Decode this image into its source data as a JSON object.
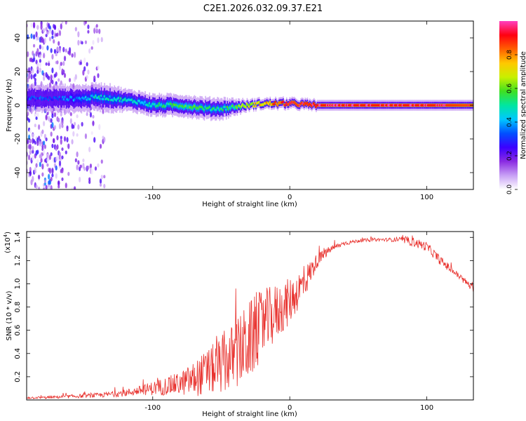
{
  "figure": {
    "title": "C2E1.2026.032.09.37.E21"
  },
  "chart_data": [
    {
      "type": "heatmap",
      "xlabel": "Height of straight line (km)",
      "ylabel": "Frequency (Hz)",
      "xlim": [
        -192,
        134
      ],
      "ylim": [
        -50,
        50
      ],
      "xticks": [
        -100,
        0,
        100
      ],
      "xtick_labels": [
        "-100",
        "0",
        "100"
      ],
      "yticks": [
        -40,
        -20,
        0,
        20,
        40
      ],
      "ytick_labels": [
        "-40",
        "-20",
        "0",
        "20",
        "40"
      ],
      "colorbar": {
        "label": "Normalized spectral amplitude",
        "range": [
          0.0,
          1.0
        ],
        "ticks": [
          0.0,
          0.2,
          0.4,
          0.6,
          0.8
        ],
        "tick_labels": [
          "0.0",
          "0.2",
          "0.4",
          "0.6",
          "0.8"
        ],
        "colormap": [
          "#ffffff",
          "#c8a0f5",
          "#8a2be2",
          "#3b00ff",
          "#0050ff",
          "#00c8ff",
          "#00e6a0",
          "#40e020",
          "#c8f000",
          "#ffc800",
          "#ff6000",
          "#ff0010",
          "#ff40c0"
        ]
      },
      "ridge": {
        "x": [
          -190,
          -180,
          -170,
          -160,
          -150,
          -140,
          -130,
          -120,
          -110,
          -100,
          -90,
          -80,
          -70,
          -60,
          -50,
          -40,
          -30,
          -20,
          -10,
          0,
          20,
          60,
          100,
          134
        ],
        "freq": [
          4,
          4,
          4,
          4,
          4,
          5,
          4,
          3,
          2,
          0,
          0,
          0,
          -1,
          -2,
          -2,
          -1,
          0,
          1,
          1,
          1,
          0,
          0,
          0,
          0
        ],
        "amplitude": [
          0.3,
          0.3,
          0.3,
          0.35,
          0.4,
          0.45,
          0.45,
          0.45,
          0.45,
          0.5,
          0.5,
          0.55,
          0.55,
          0.5,
          0.5,
          0.55,
          0.65,
          0.75,
          0.85,
          0.9,
          0.95,
          0.95,
          0.95,
          0.9
        ],
        "halfwidth_hz": [
          5,
          5,
          5,
          5,
          5,
          5,
          5,
          4,
          4,
          4,
          4,
          4,
          4,
          4,
          4,
          3,
          2,
          2,
          2,
          2,
          2,
          2,
          2,
          2
        ]
      }
    },
    {
      "type": "line",
      "xlabel": "Height of straight line (km)",
      "ylabel": "SNR (10 * v/v)",
      "scale_label": "(x10",
      "scale_exponent": "4",
      "scale_close": ")",
      "xlim": [
        -192,
        134
      ],
      "ylim": [
        0,
        1.45
      ],
      "xticks": [
        -100,
        0,
        100
      ],
      "xtick_labels": [
        "-100",
        "0",
        "100"
      ],
      "yticks": [
        0.2,
        0.4,
        0.6,
        0.8,
        1.0,
        1.2,
        1.4
      ],
      "ytick_labels": [
        "0.2",
        "0.4",
        "0.6",
        "0.8",
        "1.0",
        "1.2",
        "1.4"
      ],
      "color": "#e8302c",
      "envelope": {
        "x": [
          -192,
          -180,
          -160,
          -140,
          -120,
          -110,
          -100,
          -90,
          -80,
          -70,
          -60,
          -50,
          -40,
          -30,
          -20,
          -10,
          0,
          10,
          20,
          30,
          40,
          50,
          60,
          70,
          80,
          90,
          100,
          110,
          120,
          130,
          134
        ],
        "mean": [
          0.02,
          0.02,
          0.03,
          0.04,
          0.06,
          0.08,
          0.1,
          0.12,
          0.14,
          0.18,
          0.24,
          0.3,
          0.38,
          0.5,
          0.65,
          0.75,
          0.85,
          1.0,
          1.2,
          1.3,
          1.35,
          1.37,
          1.38,
          1.38,
          1.38,
          1.36,
          1.32,
          1.2,
          1.1,
          1.0,
          0.95
        ],
        "noise": [
          0.01,
          0.01,
          0.015,
          0.02,
          0.03,
          0.04,
          0.06,
          0.08,
          0.1,
          0.15,
          0.2,
          0.25,
          0.3,
          0.35,
          0.3,
          0.25,
          0.2,
          0.15,
          0.06,
          0.03,
          0.02,
          0.015,
          0.015,
          0.015,
          0.02,
          0.04,
          0.04,
          0.04,
          0.03,
          0.03,
          0.03
        ]
      }
    }
  ]
}
